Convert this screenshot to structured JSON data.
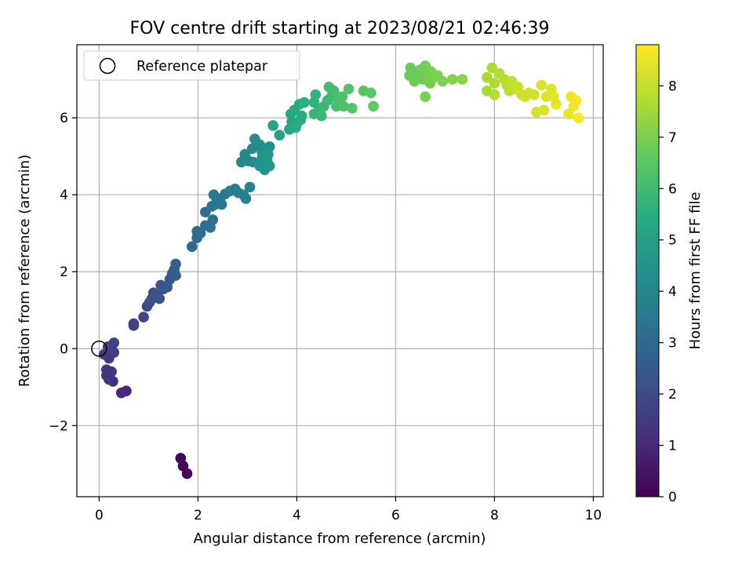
{
  "chart_data": {
    "type": "scatter",
    "title": "FOV centre drift starting at 2023/08/21 02:46:39",
    "xlabel": "Angular distance from reference (arcmin)",
    "ylabel": "Rotation from reference (arcmin)",
    "xlim": [
      -0.45,
      10.2
    ],
    "ylim": [
      -3.85,
      7.9
    ],
    "xticks": [
      0,
      2,
      4,
      6,
      8,
      10
    ],
    "yticks": [
      -2,
      0,
      2,
      4,
      6
    ],
    "xtick_labels": [
      "0",
      "2",
      "4",
      "6",
      "8",
      "10"
    ],
    "ytick_labels": [
      "−2",
      "0",
      "2",
      "4",
      "6"
    ],
    "grid": true,
    "legend": {
      "placement": "top-left",
      "entries": [
        {
          "label": "Reference platepar",
          "marker": "open-circle"
        }
      ]
    },
    "reference_point": {
      "x": 0,
      "y": 0
    },
    "colorbar": {
      "label": "Hours from first FF file",
      "colormap": "viridis",
      "range": [
        0,
        8.8
      ],
      "ticks": [
        0,
        1,
        2,
        3,
        4,
        5,
        6,
        7,
        8
      ],
      "tick_labels": [
        "0",
        "1",
        "2",
        "3",
        "4",
        "5",
        "6",
        "7",
        "8"
      ]
    },
    "points": [
      {
        "x": 1.65,
        "y": -2.85,
        "t": 0.05
      },
      {
        "x": 1.7,
        "y": -3.05,
        "t": 0.1
      },
      {
        "x": 1.78,
        "y": -3.25,
        "t": 0.15
      },
      {
        "x": 0.45,
        "y": -1.15,
        "t": 1.0
      },
      {
        "x": 0.55,
        "y": -1.1,
        "t": 1.05
      },
      {
        "x": 0.28,
        "y": -0.85,
        "t": 1.2
      },
      {
        "x": 0.2,
        "y": -0.8,
        "t": 1.25
      },
      {
        "x": 0.15,
        "y": -0.7,
        "t": 1.3
      },
      {
        "x": 0.25,
        "y": -0.6,
        "t": 1.35
      },
      {
        "x": 0.15,
        "y": -0.55,
        "t": 1.4
      },
      {
        "x": 0.2,
        "y": -0.25,
        "t": 1.5
      },
      {
        "x": 0.1,
        "y": -0.15,
        "t": 1.55
      },
      {
        "x": 0.3,
        "y": -0.1,
        "t": 1.6
      },
      {
        "x": 0.22,
        "y": 0.0,
        "t": 1.65
      },
      {
        "x": 0.3,
        "y": 0.15,
        "t": 1.7
      },
      {
        "x": 0.18,
        "y": 0.05,
        "t": 1.72
      },
      {
        "x": 0.7,
        "y": 0.6,
        "t": 1.8
      },
      {
        "x": 0.7,
        "y": 0.65,
        "t": 1.82
      },
      {
        "x": 0.9,
        "y": 0.82,
        "t": 1.9
      },
      {
        "x": 0.97,
        "y": 1.1,
        "t": 2.0
      },
      {
        "x": 1.02,
        "y": 1.2,
        "t": 2.05
      },
      {
        "x": 1.07,
        "y": 1.3,
        "t": 2.1
      },
      {
        "x": 1.15,
        "y": 1.38,
        "t": 2.15
      },
      {
        "x": 1.1,
        "y": 1.45,
        "t": 2.2
      },
      {
        "x": 1.22,
        "y": 1.3,
        "t": 2.25
      },
      {
        "x": 1.3,
        "y": 1.55,
        "t": 2.3
      },
      {
        "x": 1.25,
        "y": 1.65,
        "t": 2.35
      },
      {
        "x": 1.38,
        "y": 1.6,
        "t": 2.4
      },
      {
        "x": 1.43,
        "y": 1.8,
        "t": 2.45
      },
      {
        "x": 1.48,
        "y": 1.95,
        "t": 2.5
      },
      {
        "x": 1.55,
        "y": 1.9,
        "t": 2.55
      },
      {
        "x": 1.52,
        "y": 2.05,
        "t": 2.6
      },
      {
        "x": 1.55,
        "y": 2.2,
        "t": 2.62
      },
      {
        "x": 1.88,
        "y": 2.65,
        "t": 3.0
      },
      {
        "x": 1.98,
        "y": 2.88,
        "t": 3.05
      },
      {
        "x": 1.98,
        "y": 3.05,
        "t": 3.1
      },
      {
        "x": 2.05,
        "y": 3.0,
        "t": 3.15
      },
      {
        "x": 2.15,
        "y": 3.2,
        "t": 3.2
      },
      {
        "x": 2.3,
        "y": 3.35,
        "t": 3.25
      },
      {
        "x": 2.25,
        "y": 3.15,
        "t": 3.28
      },
      {
        "x": 2.15,
        "y": 3.55,
        "t": 3.3
      },
      {
        "x": 2.28,
        "y": 3.7,
        "t": 3.35
      },
      {
        "x": 2.35,
        "y": 3.75,
        "t": 3.4
      },
      {
        "x": 2.48,
        "y": 3.75,
        "t": 3.45
      },
      {
        "x": 2.45,
        "y": 3.9,
        "t": 3.5
      },
      {
        "x": 2.32,
        "y": 4.0,
        "t": 3.55
      },
      {
        "x": 2.55,
        "y": 4.02,
        "t": 3.6
      },
      {
        "x": 2.65,
        "y": 4.1,
        "t": 3.65
      },
      {
        "x": 2.75,
        "y": 4.15,
        "t": 3.7
      },
      {
        "x": 2.82,
        "y": 4.05,
        "t": 3.75
      },
      {
        "x": 2.92,
        "y": 4.0,
        "t": 3.8
      },
      {
        "x": 2.97,
        "y": 3.9,
        "t": 3.82
      },
      {
        "x": 3.05,
        "y": 4.2,
        "t": 3.85
      },
      {
        "x": 2.88,
        "y": 4.85,
        "t": 4.0
      },
      {
        "x": 2.95,
        "y": 5.05,
        "t": 4.05
      },
      {
        "x": 3.02,
        "y": 4.88,
        "t": 4.1
      },
      {
        "x": 3.12,
        "y": 4.85,
        "t": 4.15
      },
      {
        "x": 3.1,
        "y": 5.2,
        "t": 4.2
      },
      {
        "x": 3.15,
        "y": 5.45,
        "t": 4.25
      },
      {
        "x": 3.25,
        "y": 5.3,
        "t": 4.3
      },
      {
        "x": 3.3,
        "y": 5.1,
        "t": 4.35
      },
      {
        "x": 3.38,
        "y": 5.2,
        "t": 4.4
      },
      {
        "x": 3.45,
        "y": 5.25,
        "t": 4.45
      },
      {
        "x": 3.3,
        "y": 4.95,
        "t": 4.5
      },
      {
        "x": 3.25,
        "y": 4.75,
        "t": 4.55
      },
      {
        "x": 3.35,
        "y": 4.65,
        "t": 4.6
      },
      {
        "x": 3.45,
        "y": 4.75,
        "t": 4.62
      },
      {
        "x": 3.4,
        "y": 4.9,
        "t": 4.65
      },
      {
        "x": 3.42,
        "y": 5.05,
        "t": 4.68
      },
      {
        "x": 3.52,
        "y": 5.8,
        "t": 5.0
      },
      {
        "x": 3.65,
        "y": 5.55,
        "t": 5.05
      },
      {
        "x": 3.85,
        "y": 5.7,
        "t": 5.1
      },
      {
        "x": 3.9,
        "y": 5.9,
        "t": 5.15
      },
      {
        "x": 3.88,
        "y": 6.1,
        "t": 5.2
      },
      {
        "x": 4.0,
        "y": 5.85,
        "t": 5.25
      },
      {
        "x": 4.08,
        "y": 5.95,
        "t": 5.3
      },
      {
        "x": 3.95,
        "y": 6.2,
        "t": 5.35
      },
      {
        "x": 4.05,
        "y": 6.35,
        "t": 5.4
      },
      {
        "x": 4.1,
        "y": 6.05,
        "t": 5.42
      },
      {
        "x": 3.98,
        "y": 5.75,
        "t": 5.45
      },
      {
        "x": 4.15,
        "y": 6.4,
        "t": 5.6
      },
      {
        "x": 4.35,
        "y": 6.4,
        "t": 5.65
      },
      {
        "x": 4.38,
        "y": 6.6,
        "t": 5.7
      },
      {
        "x": 4.45,
        "y": 6.25,
        "t": 5.75
      },
      {
        "x": 4.35,
        "y": 6.1,
        "t": 5.8
      },
      {
        "x": 4.5,
        "y": 6.05,
        "t": 5.85
      },
      {
        "x": 4.55,
        "y": 6.3,
        "t": 5.9
      },
      {
        "x": 4.62,
        "y": 6.45,
        "t": 5.95
      },
      {
        "x": 4.7,
        "y": 6.55,
        "t": 6.0
      },
      {
        "x": 4.65,
        "y": 6.8,
        "t": 6.05
      },
      {
        "x": 4.75,
        "y": 6.7,
        "t": 6.1
      },
      {
        "x": 4.85,
        "y": 6.5,
        "t": 6.15
      },
      {
        "x": 4.8,
        "y": 6.3,
        "t": 6.2
      },
      {
        "x": 4.92,
        "y": 6.55,
        "t": 6.25
      },
      {
        "x": 4.95,
        "y": 6.3,
        "t": 6.3
      },
      {
        "x": 5.05,
        "y": 6.75,
        "t": 6.35
      },
      {
        "x": 5.12,
        "y": 6.25,
        "t": 6.4
      },
      {
        "x": 5.35,
        "y": 6.7,
        "t": 6.45
      },
      {
        "x": 5.5,
        "y": 6.65,
        "t": 6.5
      },
      {
        "x": 5.55,
        "y": 6.3,
        "t": 6.55
      },
      {
        "x": 6.28,
        "y": 7.1,
        "t": 6.7
      },
      {
        "x": 6.3,
        "y": 7.3,
        "t": 6.72
      },
      {
        "x": 6.38,
        "y": 6.95,
        "t": 6.75
      },
      {
        "x": 6.45,
        "y": 7.15,
        "t": 6.78
      },
      {
        "x": 6.5,
        "y": 7.25,
        "t": 6.8
      },
      {
        "x": 6.55,
        "y": 7.0,
        "t": 6.82
      },
      {
        "x": 6.6,
        "y": 7.35,
        "t": 6.85
      },
      {
        "x": 6.65,
        "y": 7.15,
        "t": 6.88
      },
      {
        "x": 6.7,
        "y": 6.9,
        "t": 6.9
      },
      {
        "x": 6.72,
        "y": 7.2,
        "t": 6.92
      },
      {
        "x": 6.78,
        "y": 7.05,
        "t": 6.95
      },
      {
        "x": 6.6,
        "y": 6.55,
        "t": 6.97
      },
      {
        "x": 6.85,
        "y": 7.1,
        "t": 7.0
      },
      {
        "x": 6.95,
        "y": 6.95,
        "t": 7.05
      },
      {
        "x": 7.15,
        "y": 7.0,
        "t": 7.1
      },
      {
        "x": 7.35,
        "y": 7.0,
        "t": 7.15
      },
      {
        "x": 7.85,
        "y": 6.7,
        "t": 7.6
      },
      {
        "x": 7.85,
        "y": 7.05,
        "t": 7.65
      },
      {
        "x": 7.95,
        "y": 7.3,
        "t": 7.7
      },
      {
        "x": 8.0,
        "y": 6.9,
        "t": 7.72
      },
      {
        "x": 8.0,
        "y": 6.6,
        "t": 7.75
      },
      {
        "x": 8.1,
        "y": 7.15,
        "t": 7.78
      },
      {
        "x": 8.2,
        "y": 7.0,
        "t": 7.8
      },
      {
        "x": 8.25,
        "y": 6.85,
        "t": 7.85
      },
      {
        "x": 8.3,
        "y": 6.7,
        "t": 7.9
      },
      {
        "x": 8.35,
        "y": 6.95,
        "t": 7.95
      },
      {
        "x": 8.4,
        "y": 6.75,
        "t": 8.0
      },
      {
        "x": 8.48,
        "y": 6.8,
        "t": 8.05
      },
      {
        "x": 8.55,
        "y": 6.6,
        "t": 8.1
      },
      {
        "x": 8.62,
        "y": 6.55,
        "t": 8.15
      },
      {
        "x": 8.7,
        "y": 6.65,
        "t": 8.2
      },
      {
        "x": 8.8,
        "y": 6.6,
        "t": 8.22
      },
      {
        "x": 8.85,
        "y": 6.15,
        "t": 8.25
      },
      {
        "x": 8.95,
        "y": 6.85,
        "t": 8.3
      },
      {
        "x": 9.0,
        "y": 6.2,
        "t": 8.32
      },
      {
        "x": 9.05,
        "y": 6.55,
        "t": 8.35
      },
      {
        "x": 9.15,
        "y": 6.75,
        "t": 8.4
      },
      {
        "x": 9.2,
        "y": 6.55,
        "t": 8.45
      },
      {
        "x": 9.25,
        "y": 6.35,
        "t": 8.5
      },
      {
        "x": 9.5,
        "y": 6.1,
        "t": 8.55
      },
      {
        "x": 9.55,
        "y": 6.55,
        "t": 8.6
      },
      {
        "x": 9.6,
        "y": 6.3,
        "t": 8.65
      },
      {
        "x": 9.65,
        "y": 6.45,
        "t": 8.7
      },
      {
        "x": 9.7,
        "y": 6.0,
        "t": 8.75
      }
    ]
  }
}
